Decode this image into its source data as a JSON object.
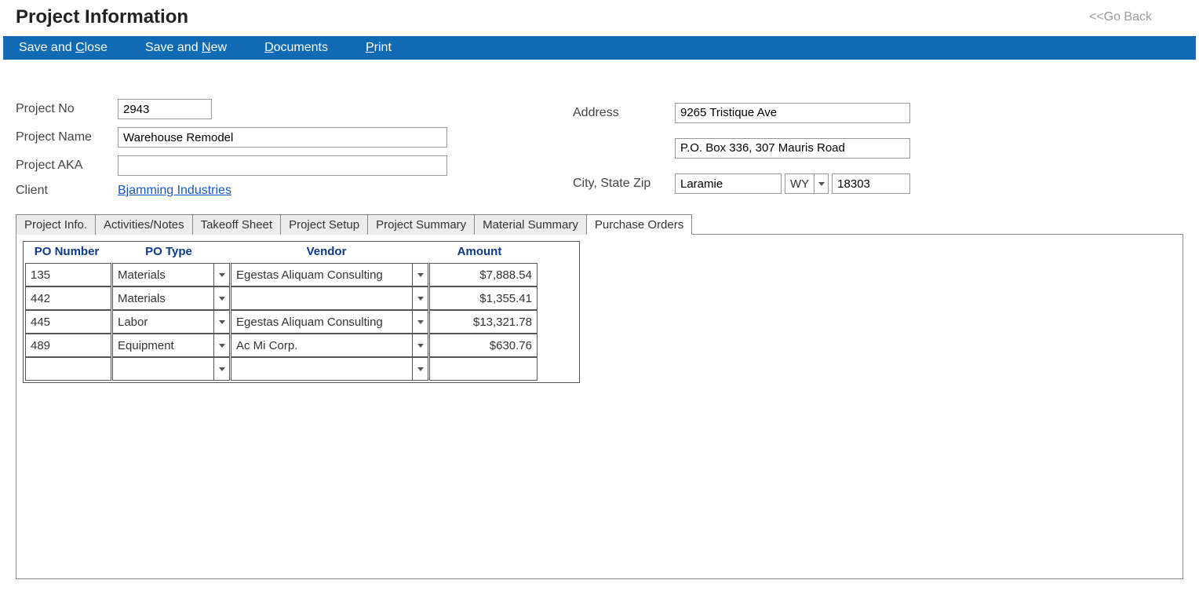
{
  "header": {
    "title": "Project Information",
    "go_back": "<<Go Back"
  },
  "toolbar": {
    "save_close": "Save and Close",
    "save_close_u": "C",
    "save_new": "Save and New",
    "save_new_u": "N",
    "documents": "Documents",
    "documents_u": "D",
    "print": "Print",
    "print_u": "P"
  },
  "form": {
    "labels": {
      "project_no": "Project No",
      "project_name": "Project Name",
      "project_aka": "Project AKA",
      "client": "Client",
      "address": "Address",
      "city_state_zip": "City, State Zip"
    },
    "project_no": "2943",
    "project_name": "Warehouse Remodel",
    "project_aka": "",
    "client": "Bjamming Industries",
    "address1": "9265 Tristique Ave",
    "address2": "P.O. Box 336, 307 Mauris Road",
    "city": "Laramie",
    "state": "WY",
    "zip": "18303"
  },
  "tabs": [
    "Project Info.",
    "Activities/Notes",
    "Takeoff Sheet",
    "Project Setup",
    "Project Summary",
    "Material Summary",
    "Purchase Orders"
  ],
  "active_tab_index": 6,
  "po_table": {
    "headers": {
      "po_number": "PO Number",
      "po_type": "PO Type",
      "vendor": "Vendor",
      "amount": "Amount"
    },
    "rows": [
      {
        "po_number": "135",
        "po_type": "Materials",
        "vendor": "Egestas Aliquam Consulting",
        "amount": "$7,888.54"
      },
      {
        "po_number": "442",
        "po_type": "Materials",
        "vendor": "",
        "amount": "$1,355.41"
      },
      {
        "po_number": "445",
        "po_type": "Labor",
        "vendor": "Egestas Aliquam Consulting",
        "amount": "$13,321.78"
      },
      {
        "po_number": "489",
        "po_type": "Equipment",
        "vendor": "Ac Mi Corp.",
        "amount": "$630.76"
      },
      {
        "po_number": "",
        "po_type": "",
        "vendor": "",
        "amount": ""
      }
    ]
  },
  "colors": {
    "toolbar_bg": "#106ab4",
    "link": "#1456c4",
    "header_text": "#0b3a8a"
  }
}
